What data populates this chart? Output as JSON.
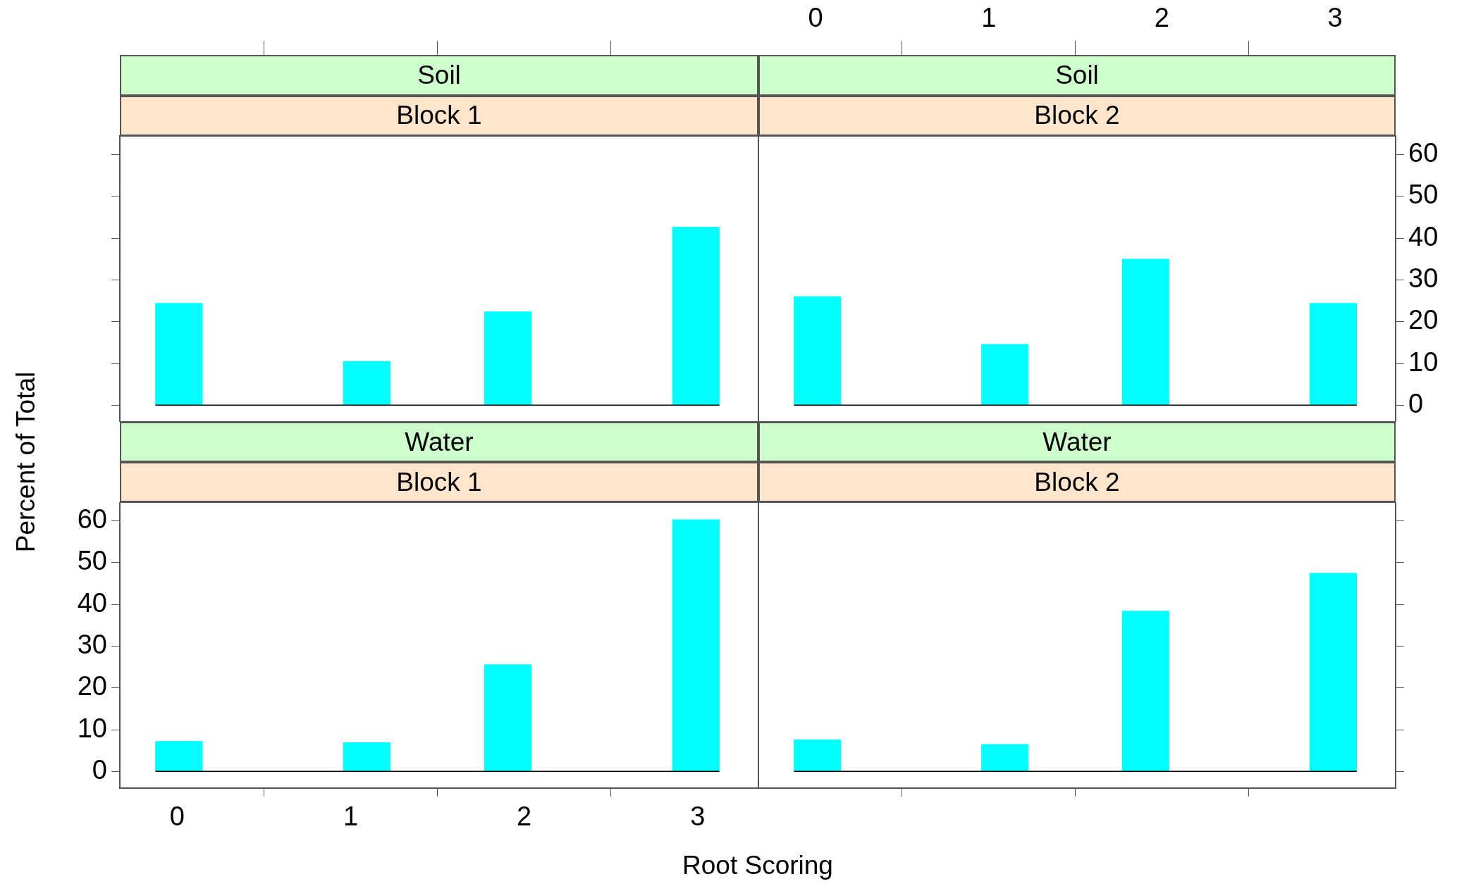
{
  "chart_data": [
    {
      "type": "histogram",
      "title": "Soil",
      "subtitle": "Block 1",
      "bins": [
        -0.125,
        0.146,
        0.417,
        0.688,
        0.958,
        1.229,
        1.5,
        1.771,
        2.042,
        2.313,
        2.583,
        2.854,
        3.125
      ],
      "values": [
        24.4,
        0,
        0,
        0,
        10.5,
        0,
        0,
        22.4,
        0,
        0,
        0,
        42.7
      ],
      "color": "#00ffff",
      "xlim": [
        -0.33,
        3.35
      ],
      "xticks": [
        0,
        1,
        2,
        3
      ],
      "ylim": [
        -4,
        64.5
      ],
      "yticks": [
        0,
        10,
        20,
        30,
        40,
        50,
        60
      ],
      "tick_labels": false
    },
    {
      "type": "histogram",
      "title": "Soil",
      "subtitle": "Block 2",
      "bins": [
        -0.125,
        0.146,
        0.417,
        0.688,
        0.958,
        1.229,
        1.5,
        1.771,
        2.042,
        2.313,
        2.583,
        2.854,
        3.125
      ],
      "values": [
        26,
        0,
        0,
        0,
        14.6,
        0,
        0,
        35,
        0,
        0,
        0,
        24.4
      ],
      "color": "#00ffff",
      "xlim": [
        -0.33,
        3.35
      ],
      "xticks": [
        0,
        1,
        2,
        3
      ],
      "ylim": [
        -4,
        64.5
      ],
      "yticks": [
        0,
        10,
        20,
        30,
        40,
        50,
        60
      ]
    },
    {
      "type": "histogram",
      "title": "Water",
      "subtitle": "Block 1",
      "xlabel": "Root Scoring",
      "ylabel": "Percent of Total",
      "bins": [
        -0.125,
        0.146,
        0.417,
        0.688,
        0.958,
        1.229,
        1.5,
        1.771,
        2.042,
        2.313,
        2.583,
        2.854,
        3.125
      ],
      "values": [
        7.2,
        0,
        0,
        0,
        6.9,
        0,
        0,
        25.6,
        0,
        0,
        0,
        60.3
      ],
      "color": "#00ffff",
      "xlim": [
        -0.33,
        3.35
      ],
      "xticks": [
        0,
        1,
        2,
        3
      ],
      "ylim": [
        -4,
        64.5
      ],
      "yticks": [
        0,
        10,
        20,
        30,
        40,
        50,
        60
      ]
    },
    {
      "type": "histogram",
      "title": "Water",
      "subtitle": "Block 2",
      "bins": [
        -0.125,
        0.146,
        0.417,
        0.688,
        0.958,
        1.229,
        1.5,
        1.771,
        2.042,
        2.313,
        2.583,
        2.854,
        3.125
      ],
      "values": [
        7.6,
        0,
        0,
        0,
        6.5,
        0,
        0,
        38.4,
        0,
        0,
        0,
        47.5
      ],
      "color": "#00ffff",
      "xlim": [
        -0.33,
        3.35
      ],
      "xticks": [
        0,
        1,
        2,
        3
      ],
      "ylim": [
        -4,
        64.5
      ],
      "yticks": [
        0,
        10,
        20,
        30,
        40,
        50,
        60
      ],
      "tick_labels": false
    }
  ]
}
